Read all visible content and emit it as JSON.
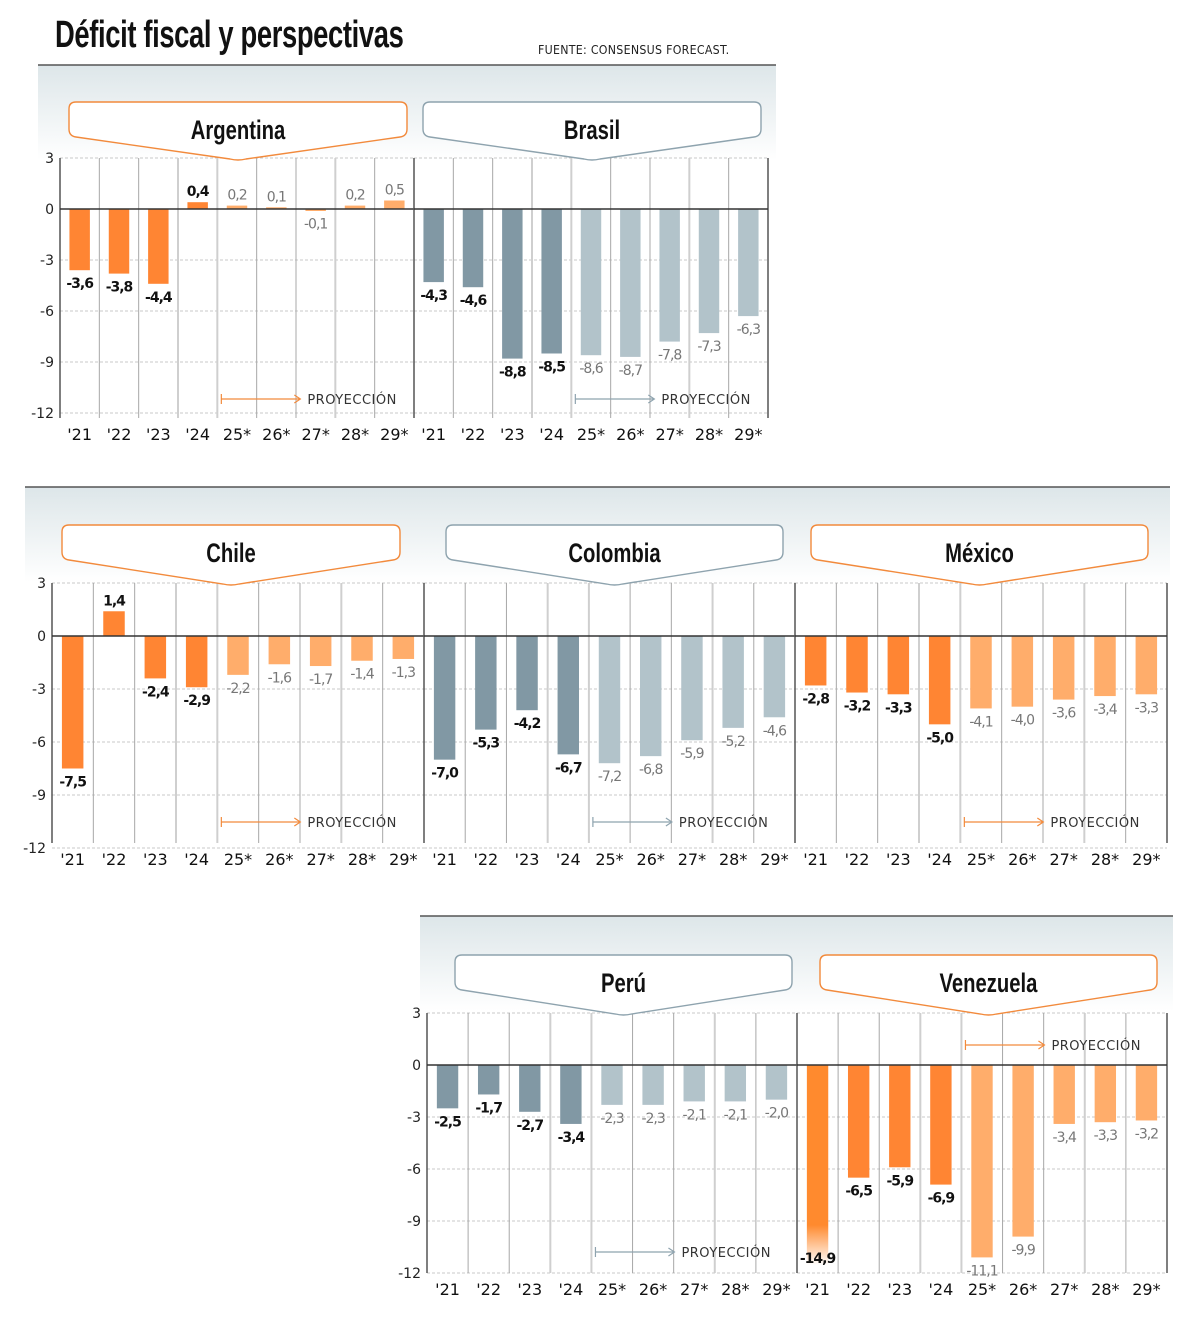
{
  "header": {
    "title": "Déficit fiscal y perspectivas",
    "source": "FUENTE: CONSENSUS FORECAST."
  },
  "colors": {
    "orange_hist": "#ff8533",
    "orange_proj": "#ffad6b",
    "orange_border": "#f28a3c",
    "gray_hist": "#8198a4",
    "gray_proj": "#b2c3ca",
    "gray_border": "#8ea3ae",
    "zero_line": "#333333",
    "grid": "#c8c8c8"
  },
  "legend": {
    "projection_label": "PROYECCIÓN",
    "projection_note": "* proyección"
  },
  "chart_data": [
    {
      "type": "bar",
      "title": "Argentina",
      "theme": "orange",
      "categories": [
        "'21",
        "'22",
        "'23",
        "'24",
        "25*",
        "26*",
        "27*",
        "28*",
        "29*"
      ],
      "values": [
        -3.6,
        -3.8,
        -4.4,
        0.4,
        0.2,
        0.1,
        -0.1,
        0.2,
        0.5
      ],
      "labels": [
        "-3,6",
        "-3,8",
        "-4,4",
        "0,4",
        "0,2",
        "0,1",
        "-0,1",
        "0,2",
        "0,5"
      ],
      "projected_from_index": 4,
      "yticks": [
        3,
        0,
        -3,
        -6,
        -9,
        -12
      ],
      "ylim": [
        -12,
        3
      ],
      "xlabel": "",
      "ylabel": "",
      "grid": true
    },
    {
      "type": "bar",
      "title": "Brasil",
      "theme": "gray",
      "categories": [
        "'21",
        "'22",
        "'23",
        "'24",
        "25*",
        "26*",
        "27*",
        "28*",
        "29*"
      ],
      "values": [
        -4.3,
        -4.6,
        -8.8,
        -8.5,
        -8.6,
        -8.7,
        -7.8,
        -7.3,
        -6.3
      ],
      "labels": [
        "-4,3",
        "-4,6",
        "-8,8",
        "-8,5",
        "-8,6",
        "-8,7",
        "-7,8",
        "-7,3",
        "-6,3"
      ],
      "projected_from_index": 4,
      "yticks": [],
      "ylim": [
        -12,
        3
      ],
      "grid": true
    },
    {
      "type": "bar",
      "title": "Chile",
      "theme": "orange",
      "categories": [
        "'21",
        "'22",
        "'23",
        "'24",
        "25*",
        "26*",
        "27*",
        "28*",
        "29*"
      ],
      "values": [
        -7.5,
        1.4,
        -2.4,
        -2.9,
        -2.2,
        -1.6,
        -1.7,
        -1.4,
        -1.3
      ],
      "labels": [
        "-7,5",
        "1,4",
        "-2,4",
        "-2,9",
        "-2,2",
        "-1,6",
        "-1,7",
        "-1,4",
        "-1,3"
      ],
      "projected_from_index": 4,
      "yticks": [
        3,
        0,
        -3,
        -6,
        -9,
        -12
      ],
      "ylim": [
        -12,
        3
      ],
      "grid": true
    },
    {
      "type": "bar",
      "title": "Colombia",
      "theme": "gray",
      "categories": [
        "'21",
        "'22",
        "'23",
        "'24",
        "25*",
        "26*",
        "27*",
        "28*",
        "29*"
      ],
      "values": [
        -7.0,
        -5.3,
        -4.2,
        -6.7,
        -7.2,
        -6.8,
        -5.9,
        -5.2,
        -4.6
      ],
      "labels": [
        "-7,0",
        "-5,3",
        "-4,2",
        "-6,7",
        "-7,2",
        "-6,8",
        "-5,9",
        "-5,2",
        "-4,6"
      ],
      "projected_from_index": 4,
      "yticks": [],
      "ylim": [
        -12,
        3
      ],
      "grid": true
    },
    {
      "type": "bar",
      "title": "México",
      "theme": "orange",
      "categories": [
        "'21",
        "'22",
        "'23",
        "'24",
        "25*",
        "26*",
        "27*",
        "28*",
        "29*"
      ],
      "values": [
        -2.8,
        -3.2,
        -3.3,
        -5.0,
        -4.1,
        -4.0,
        -3.6,
        -3.4,
        -3.3
      ],
      "labels": [
        "-2,8",
        "-3,2",
        "-3,3",
        "-5,0",
        "-4,1",
        "-4,0",
        "-3,6",
        "-3,4",
        "-3,3"
      ],
      "projected_from_index": 4,
      "yticks": [],
      "ylim": [
        -12,
        3
      ],
      "grid": true
    },
    {
      "type": "bar",
      "title": "Perú",
      "theme": "gray",
      "categories": [
        "'21",
        "'22",
        "'23",
        "'24",
        "25*",
        "26*",
        "27*",
        "28*",
        "29*"
      ],
      "values": [
        -2.5,
        -1.7,
        -2.7,
        -3.4,
        -2.3,
        -2.3,
        -2.1,
        -2.1,
        -2.0
      ],
      "labels": [
        "-2,5",
        "-1,7",
        "-2,7",
        "-3,4",
        "-2,3",
        "-2,3",
        "-2,1",
        "-2,1",
        "-2,0"
      ],
      "projected_from_index": 4,
      "yticks": [
        3,
        0,
        -3,
        -6,
        -9,
        -12
      ],
      "ylim": [
        -12,
        3
      ],
      "grid": true
    },
    {
      "type": "bar",
      "title": "Venezuela",
      "theme": "orange",
      "categories": [
        "'21",
        "'22",
        "'23",
        "'24",
        "25*",
        "26*",
        "27*",
        "28*",
        "29*"
      ],
      "values": [
        -14.9,
        -6.5,
        -5.9,
        -6.9,
        -11.1,
        -9.9,
        -3.4,
        -3.3,
        -3.2
      ],
      "labels": [
        "-14,9",
        "-6,5",
        "-5,9",
        "-6,9",
        "-11,1",
        "-9,9",
        "-3,4",
        "-3,3",
        "-3,2"
      ],
      "projected_from_index": 4,
      "truncated_indices": [
        0
      ],
      "yticks": [],
      "ylim": [
        -12,
        3
      ],
      "grid": true
    }
  ]
}
